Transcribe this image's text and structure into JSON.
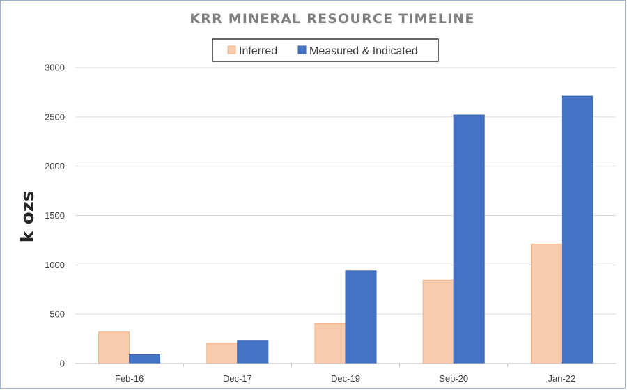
{
  "chart_data": {
    "type": "bar",
    "title": "KRR MINERAL RESOURCE TIMELINE",
    "xlabel": "",
    "ylabel": "k ozs",
    "categories": [
      "Feb-16",
      "Dec-17",
      "Dec-19",
      "Sep-20",
      "Jan-22"
    ],
    "series": [
      {
        "name": "Inferred",
        "color": "#f8cbad",
        "edge": "#f4b183",
        "values": [
          320,
          205,
          405,
          845,
          1210
        ]
      },
      {
        "name": "Measured & Indicated",
        "color": "#4472c4",
        "edge": "#3a63ad",
        "values": [
          90,
          235,
          940,
          2520,
          2710
        ]
      }
    ],
    "ylim": [
      0,
      3000
    ],
    "yticks": [
      0,
      500,
      1000,
      1500,
      2000,
      2500,
      3000
    ],
    "grid": true,
    "legend": "top-center"
  }
}
